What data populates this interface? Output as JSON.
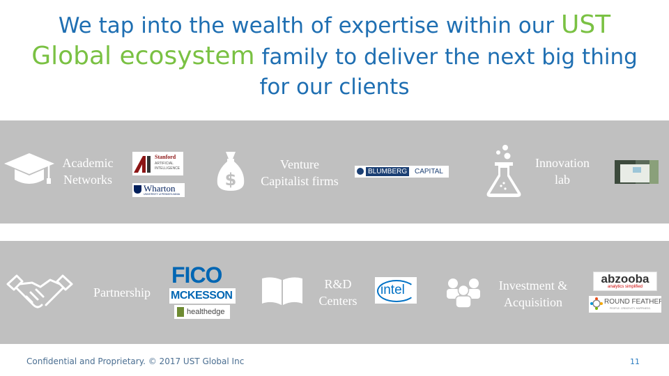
{
  "title": {
    "part1": "We tap into the wealth of expertise within our ",
    "highlight1": "UST Global ecosystem",
    "part2": " family to deliver the next big thing for our clients"
  },
  "colors": {
    "title_blue": "#1f6fb2",
    "title_green": "#7ac143",
    "band_gray": "#c0c0c0"
  },
  "row1": {
    "academic": {
      "line1": "Academic",
      "line2": "Networks",
      "icon": "graduation-cap-icon"
    },
    "venture": {
      "line1": "Venture",
      "line2": "Capitalist firms",
      "icon": "money-bag-icon"
    },
    "innovation": {
      "line1": "Innovation",
      "line2": "lab",
      "icon": "lab-flask-icon"
    }
  },
  "row2": {
    "partnership": {
      "label": "Partnership",
      "icon": "handshake-icon"
    },
    "rnd": {
      "line1": "R&D",
      "line2": "Centers",
      "icon": "open-book-icon"
    },
    "investment": {
      "line1": "Investment &",
      "line2": "Acquisition",
      "icon": "people-group-icon"
    }
  },
  "logos": {
    "stanford": {
      "line1": "Stanford",
      "line2": "ARTIFICIAL",
      "line3": "INTELLIGENCE"
    },
    "wharton": {
      "name": "Wharton",
      "sub": "UNIVERSITY of PENNSYLVANIA"
    },
    "blumberg": {
      "part1": "BLUMBERG",
      "part2": "CAPITAL"
    },
    "fico": "FICO",
    "mckesson": "MCKESSON",
    "healthedge": "healthedge",
    "intel": "intel",
    "abzooba": {
      "name": "abzooba",
      "sub": "analytics simplified"
    },
    "roundfeather": {
      "name": "ROUND FEATHER",
      "sub": "PEOPLE. CREATIVITY. HAPPINESS."
    }
  },
  "footer": {
    "text": "Confidential and Proprietary. © 2017 UST Global Inc",
    "page": "11"
  }
}
